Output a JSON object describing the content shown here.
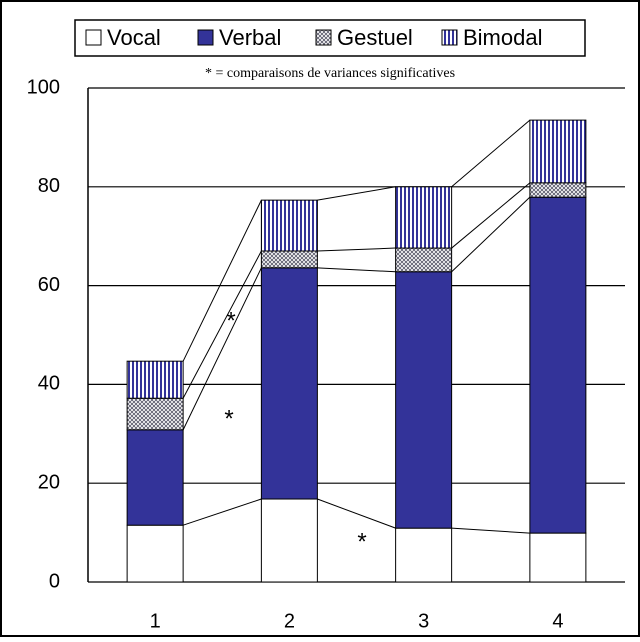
{
  "chart_data": {
    "type": "stacked_bar",
    "annotation": "* = comparaisons de variances significatives",
    "markers": [
      "*",
      "*",
      "*"
    ],
    "categories": [
      "1",
      "2",
      "3",
      "4"
    ],
    "series": [
      {
        "name": "Vocal",
        "color": "#ffffff",
        "hatch": "none",
        "values": [
          11.5,
          16.8,
          10.9,
          9.9
        ]
      },
      {
        "name": "Verbal",
        "color": "#333399",
        "hatch": "none",
        "values": [
          19.3,
          46.8,
          51.9,
          68
        ]
      },
      {
        "name": "Gestuel",
        "color": "#ffffff",
        "hatch": "cross",
        "values": [
          6.4,
          3.4,
          4.8,
          2.9
        ]
      },
      {
        "name": "Bimodal",
        "color": "#ffffff",
        "hatch": "vertical",
        "values": [
          7.5,
          10.3,
          12.4,
          12.7
        ]
      }
    ],
    "ylim": [
      0,
      100
    ],
    "yticks": [
      0,
      20,
      40,
      60,
      80,
      100
    ],
    "grid": true,
    "connectors": true
  }
}
